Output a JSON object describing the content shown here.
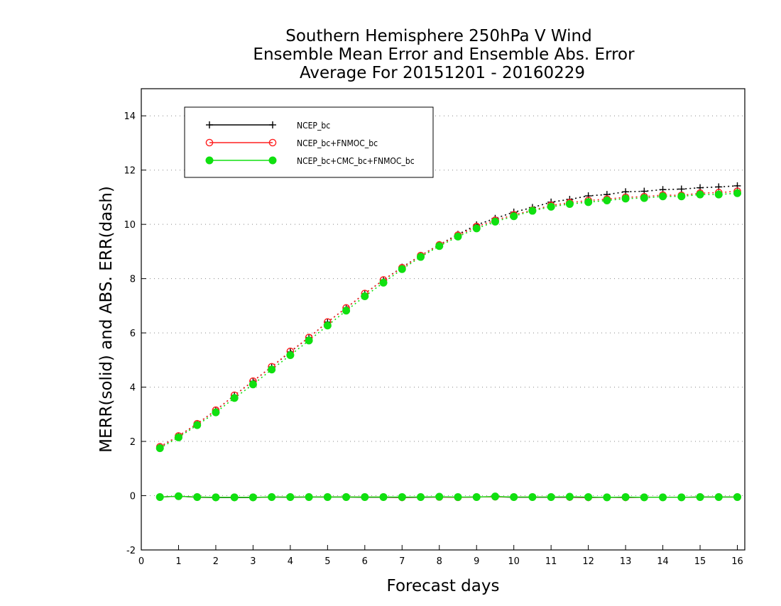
{
  "chart_data": {
    "type": "line",
    "title_lines": [
      "Southern Hemisphere 250hPa V Wind",
      "Ensemble Mean Error and Ensemble Abs. Error",
      "Average For 20151201 - 20160229"
    ],
    "xlabel": "Forecast days",
    "ylabel": "MERR(solid) and ABS. ERR(dash)",
    "xlim": [
      0,
      16.2
    ],
    "ylim": [
      -2,
      15
    ],
    "xticks": [
      "0",
      "1",
      "2",
      "3",
      "4",
      "5",
      "6",
      "7",
      "8",
      "9",
      "10",
      "11",
      "12",
      "13",
      "14",
      "15",
      "16"
    ],
    "yticks": [
      "-2",
      "0",
      "2",
      "4",
      "6",
      "8",
      "10",
      "12",
      "14"
    ],
    "grid": "horizontal dotted",
    "legend_placement": "top-left",
    "x": [
      0.5,
      1,
      1.5,
      2,
      2.5,
      3,
      3.5,
      4,
      4.5,
      5,
      5.5,
      6,
      6.5,
      7,
      7.5,
      8,
      8.5,
      9,
      9.5,
      10,
      10.5,
      11,
      11.5,
      12,
      12.5,
      13,
      13.5,
      14,
      14.5,
      15,
      15.5,
      16
    ],
    "series": [
      {
        "name": "NCEP_bc",
        "color": "#000000",
        "marker": "plus",
        "abs_err": [
          1.8,
          2.2,
          2.65,
          3.15,
          3.7,
          4.22,
          4.75,
          5.3,
          5.83,
          6.4,
          6.92,
          7.45,
          7.95,
          8.42,
          8.85,
          9.25,
          9.63,
          9.98,
          10.22,
          10.45,
          10.62,
          10.82,
          10.92,
          11.05,
          11.1,
          11.2,
          11.22,
          11.28,
          11.3,
          11.35,
          11.38,
          11.42
        ],
        "mean_err": [
          -0.05,
          -0.02,
          -0.06,
          -0.07,
          -0.07,
          -0.07,
          -0.05,
          -0.06,
          -0.05,
          -0.05,
          -0.05,
          -0.06,
          -0.06,
          -0.07,
          -0.06,
          -0.05,
          -0.06,
          -0.05,
          -0.04,
          -0.06,
          -0.06,
          -0.06,
          -0.06,
          -0.07,
          -0.06,
          -0.07,
          -0.06,
          -0.06,
          -0.06,
          -0.05,
          -0.05,
          -0.05
        ]
      },
      {
        "name": "NCEP_bc+FNMOC_bc",
        "color": "#ff2020",
        "marker": "open-circle",
        "abs_err": [
          1.8,
          2.2,
          2.65,
          3.15,
          3.7,
          4.22,
          4.75,
          5.32,
          5.83,
          6.4,
          6.92,
          7.45,
          7.95,
          8.4,
          8.85,
          9.24,
          9.6,
          9.92,
          10.15,
          10.35,
          10.52,
          10.7,
          10.8,
          10.88,
          10.93,
          11.0,
          11.02,
          11.08,
          11.07,
          11.15,
          11.17,
          11.22
        ],
        "mean_err": [
          -0.05,
          -0.02,
          -0.05,
          -0.06,
          -0.06,
          -0.06,
          -0.05,
          -0.05,
          -0.05,
          -0.05,
          -0.05,
          -0.05,
          -0.05,
          -0.06,
          -0.05,
          -0.05,
          -0.06,
          -0.05,
          -0.04,
          -0.05,
          -0.05,
          -0.05,
          -0.05,
          -0.06,
          -0.06,
          -0.06,
          -0.06,
          -0.06,
          -0.06,
          -0.05,
          -0.05,
          -0.05
        ]
      },
      {
        "name": "NCEP_bc+CMC_bc+FNMOC_bc",
        "color": "#10e010",
        "marker": "filled-circle",
        "abs_err": [
          1.75,
          2.15,
          2.6,
          3.07,
          3.6,
          4.1,
          4.65,
          5.18,
          5.72,
          6.27,
          6.82,
          7.35,
          7.85,
          8.35,
          8.8,
          9.2,
          9.55,
          9.85,
          10.1,
          10.3,
          10.5,
          10.65,
          10.75,
          10.82,
          10.88,
          10.95,
          10.97,
          11.03,
          11.03,
          11.1,
          11.1,
          11.15
        ],
        "mean_err": [
          -0.05,
          -0.02,
          -0.05,
          -0.06,
          -0.06,
          -0.06,
          -0.05,
          -0.05,
          -0.05,
          -0.05,
          -0.05,
          -0.05,
          -0.05,
          -0.05,
          -0.05,
          -0.04,
          -0.05,
          -0.05,
          -0.03,
          -0.05,
          -0.05,
          -0.05,
          -0.04,
          -0.05,
          -0.06,
          -0.05,
          -0.06,
          -0.06,
          -0.06,
          -0.05,
          -0.05,
          -0.05
        ]
      }
    ]
  }
}
